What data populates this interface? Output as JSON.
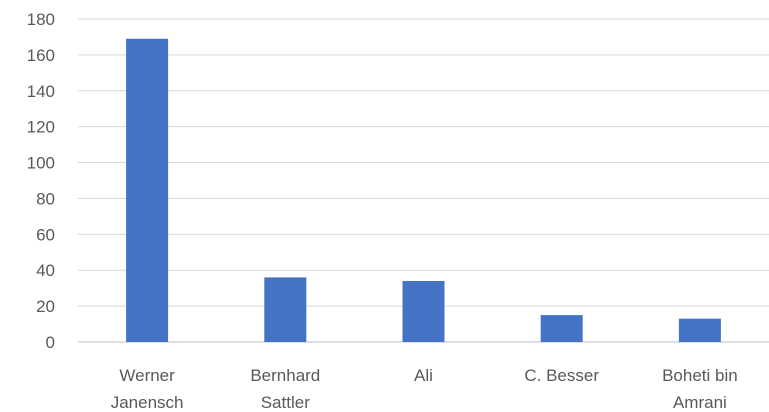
{
  "chart_data": {
    "type": "bar",
    "title": "",
    "xlabel": "",
    "ylabel": "",
    "categories": [
      [
        "Werner",
        "Janensch"
      ],
      [
        "Bernhard",
        "Sattler"
      ],
      [
        "Ali"
      ],
      [
        "C. Besser"
      ],
      [
        "Boheti bin",
        "Amrani"
      ]
    ],
    "values": [
      169,
      36,
      34,
      15,
      13
    ],
    "ylim": [
      0,
      180
    ],
    "yticks": [
      0,
      20,
      40,
      60,
      80,
      100,
      120,
      140,
      160,
      180
    ],
    "grid": true,
    "legend": "none",
    "bar_color": "#4472C4"
  }
}
